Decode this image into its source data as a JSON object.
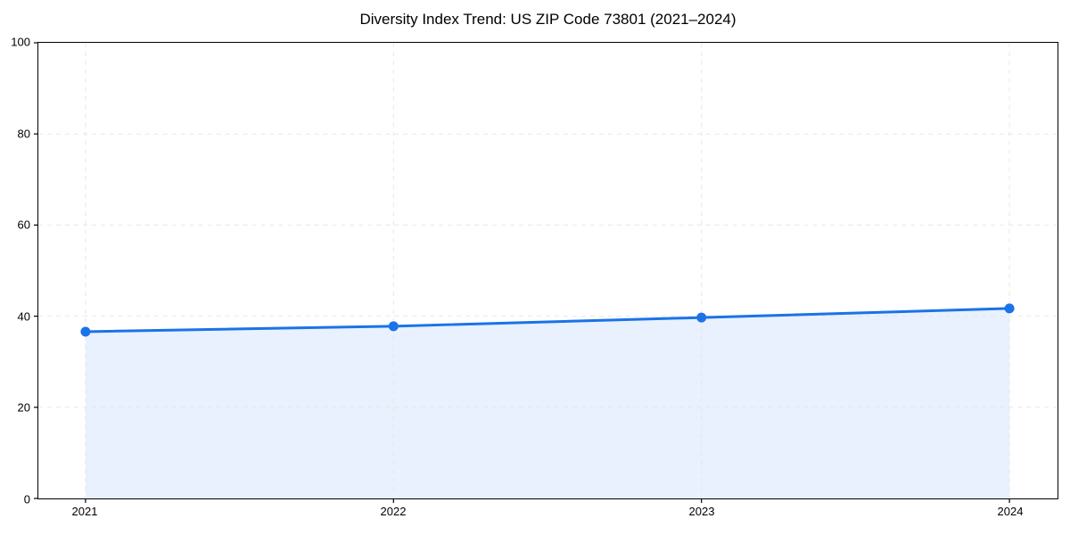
{
  "title": "Diversity Index Trend: US ZIP Code 73801 (2021–2024)",
  "chart_data": {
    "type": "line",
    "x": [
      "2021",
      "2022",
      "2023",
      "2024"
    ],
    "series": [
      {
        "name": "Diversity Index",
        "values": [
          36.6,
          37.8,
          39.7,
          41.7
        ]
      }
    ],
    "title": "Diversity Index Trend: US ZIP Code 73801 (2021–2024)",
    "xlabel": "",
    "ylabel": "",
    "ylim": [
      0,
      100
    ],
    "yticks": [
      0,
      20,
      40,
      60,
      80,
      100
    ],
    "grid": true,
    "grid_style": "dashed",
    "legend_position": "none",
    "area_fill": true,
    "marker": "circle",
    "colors": {
      "line": "#1a73e8",
      "fill": "rgba(26,115,232,0.10)",
      "grid": "#e7e7e7",
      "axis": "#000000",
      "background": "#ffffff"
    }
  }
}
